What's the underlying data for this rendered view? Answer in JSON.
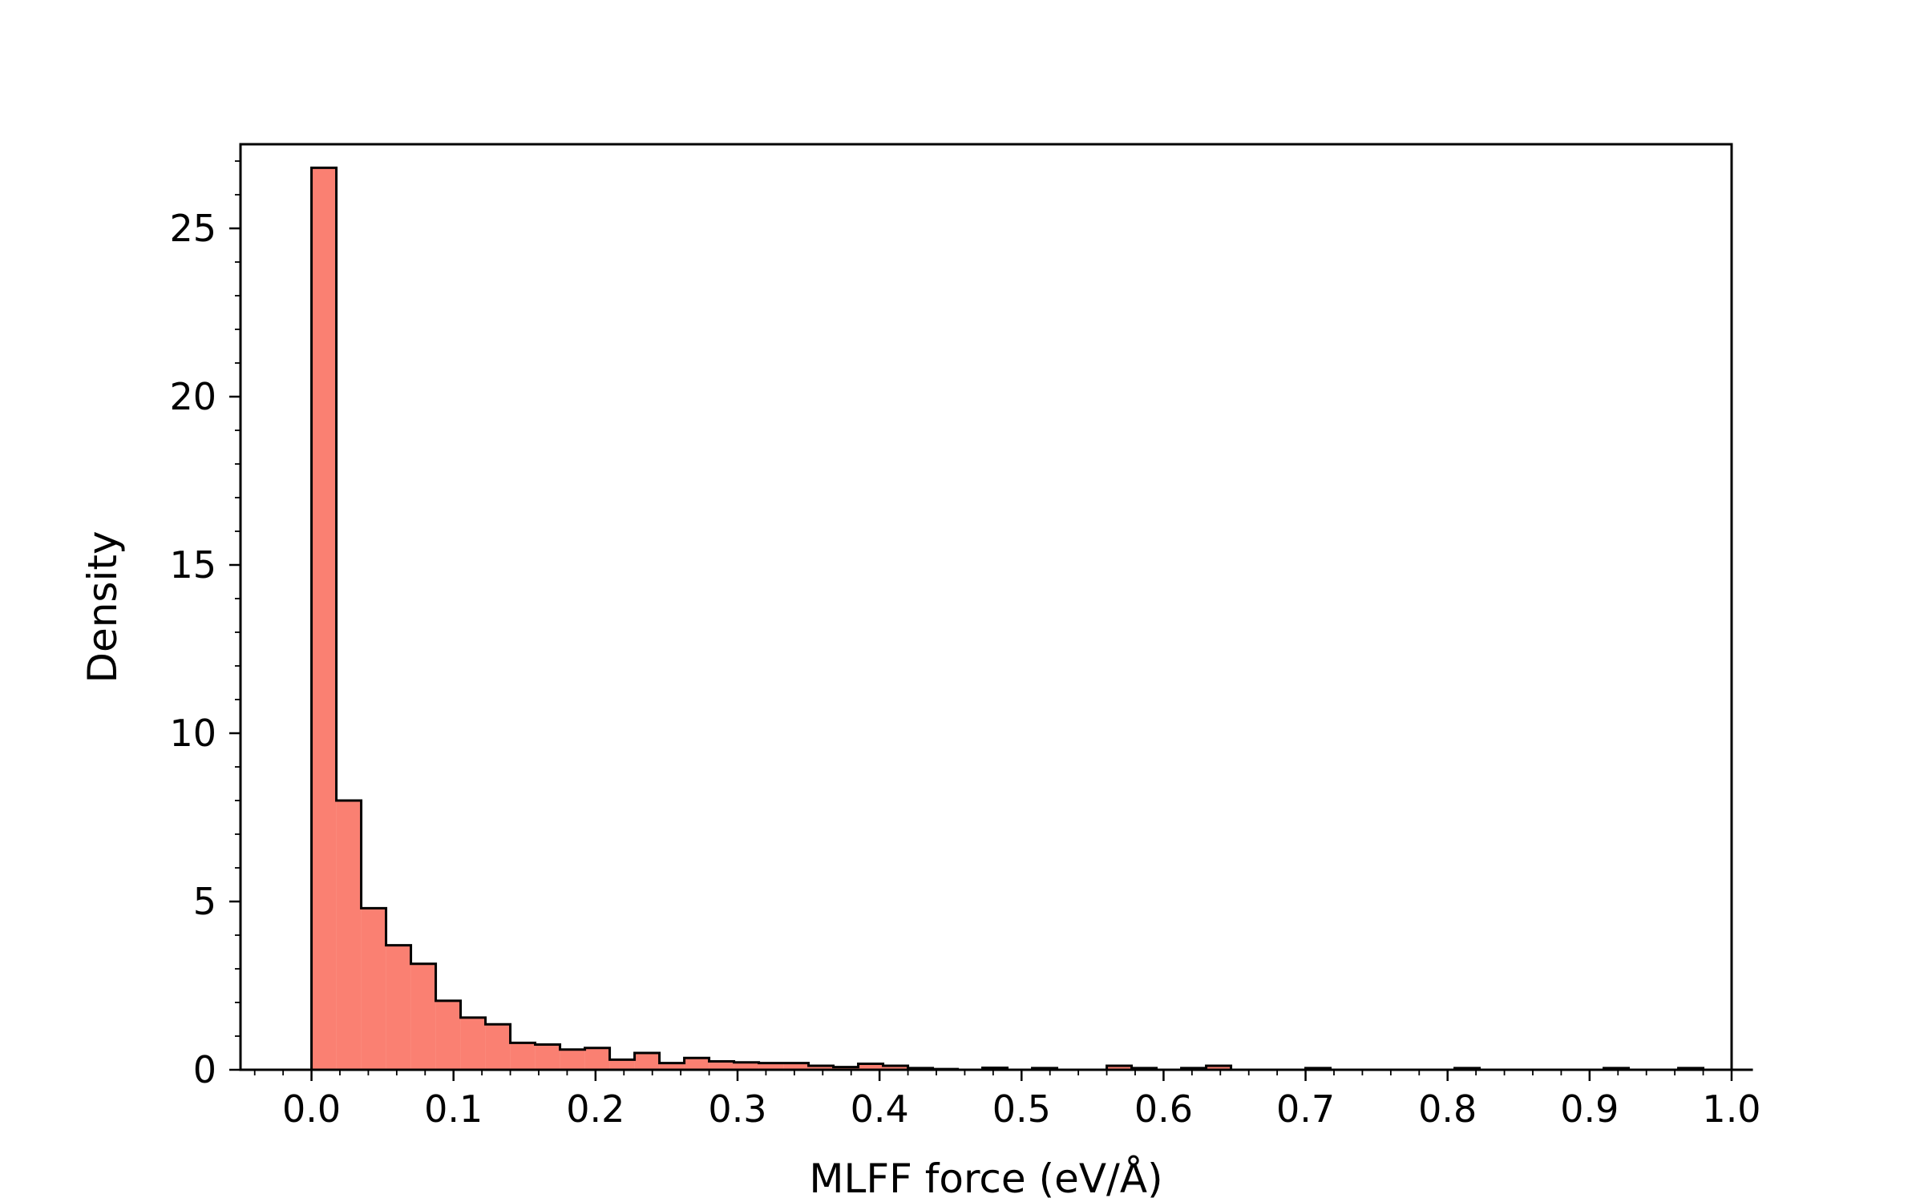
{
  "chart_data": {
    "type": "bar",
    "histogram": true,
    "xlabel": "MLFF force (eV/Å)",
    "ylabel": "Density",
    "xlim": [
      -0.05,
      1.0
    ],
    "ylim": [
      0,
      27.5
    ],
    "xticks": [
      0.0,
      0.1,
      0.2,
      0.3,
      0.4,
      0.5,
      0.6,
      0.7,
      0.8,
      0.9,
      1.0
    ],
    "xtick_labels": [
      "0.0",
      "0.1",
      "0.2",
      "0.3",
      "0.4",
      "0.5",
      "0.6",
      "0.7",
      "0.8",
      "0.9",
      "1.0"
    ],
    "yticks": [
      0,
      5,
      10,
      15,
      20,
      25
    ],
    "ytick_labels": [
      "0",
      "5",
      "10",
      "15",
      "20",
      "25"
    ],
    "bin_width": 0.0175,
    "bin_start": 0.0,
    "values": [
      26.8,
      8.0,
      4.8,
      3.7,
      3.15,
      2.05,
      1.55,
      1.35,
      0.8,
      0.75,
      0.6,
      0.65,
      0.3,
      0.5,
      0.2,
      0.35,
      0.25,
      0.22,
      0.2,
      0.2,
      0.12,
      0.08,
      0.18,
      0.12,
      0.05,
      0.02,
      0.0,
      0.06,
      0.0,
      0.05,
      0.0,
      0.0,
      0.12,
      0.05,
      0.0,
      0.05,
      0.12,
      0.0,
      0.0,
      0.0,
      0.05,
      0.0,
      0.0,
      0.0,
      0.0,
      0.0,
      0.05,
      0.0,
      0.0,
      0.0,
      0.0,
      0.0,
      0.05,
      0.0,
      0.0,
      0.05,
      0.0,
      0.0
    ],
    "bar_color": "#fa8072",
    "edge_color": "#000000",
    "grid": false,
    "legend": "none"
  }
}
